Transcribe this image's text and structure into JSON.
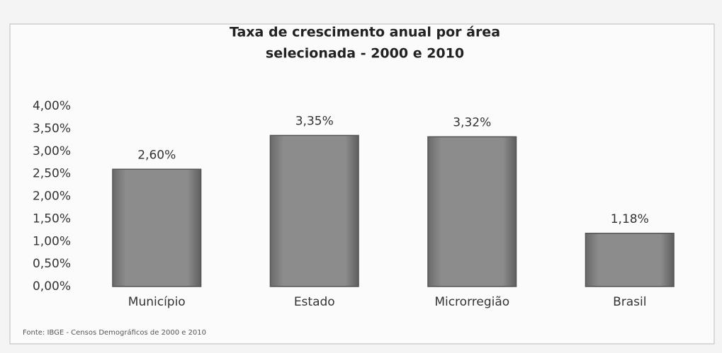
{
  "chart_data": {
    "type": "bar",
    "title": "Taxa de crescimento anual por área",
    "subtitle": "selecionada - 2000 e 2010",
    "categories": [
      "Município",
      "Estado",
      "Microrregião",
      "Brasil"
    ],
    "values": [
      2.6,
      3.35,
      3.32,
      1.18
    ],
    "value_labels": [
      "2,60%",
      "3,35%",
      "3,32%",
      "1,18%"
    ],
    "color": "#8c8c8c",
    "ylim": [
      0,
      4
    ],
    "yticks": [
      {
        "value": 0,
        "label": "0,00%"
      },
      {
        "value": 0.5,
        "label": "0,50%"
      },
      {
        "value": 1,
        "label": "1,00%"
      },
      {
        "value": 1.5,
        "label": "1,50%"
      },
      {
        "value": 2,
        "label": "2,00%"
      },
      {
        "value": 2.5,
        "label": "2,50%"
      },
      {
        "value": 3,
        "label": "3,00%"
      },
      {
        "value": 3.5,
        "label": "3,50%"
      },
      {
        "value": 4,
        "label": "4,00%"
      }
    ],
    "grid": false,
    "source": "Fonte: IBGE - Censos Demográficos de 2000 e 2010"
  }
}
